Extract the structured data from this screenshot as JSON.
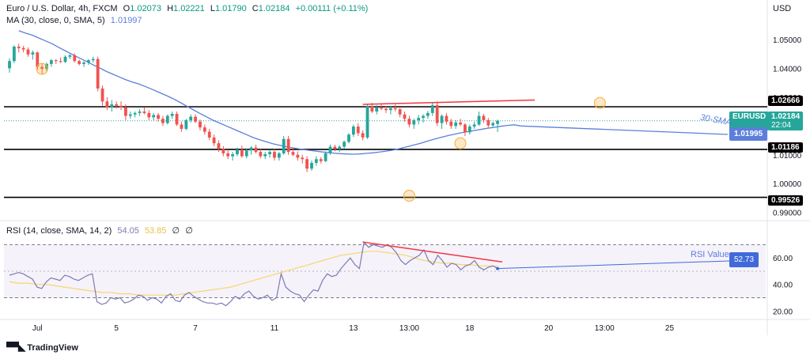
{
  "header": {
    "symbol": "Euro / U.S. Dollar, 4h, FXCM",
    "o_label": "O",
    "o_val": "1.02073",
    "h_label": "H",
    "h_val": "1.02221",
    "l_label": "L",
    "l_val": "1.01790",
    "c_label": "C",
    "c_val": "1.02184",
    "change": "+0.00111 (+0.11%)",
    "ma_label": "MA (30, close, 0, SMA, 5)",
    "ma_val": "1.01997",
    "currency": "USD"
  },
  "rsi_header": {
    "label": "RSI (14, close, SMA, 14, 2)",
    "v1": "54.05",
    "v2": "53.85",
    "v3": "∅",
    "v4": "∅"
  },
  "price_badges": {
    "symbol": "EURUSD",
    "price": "1.02184",
    "countdown": "22:04",
    "ma": "1.01995",
    "line1": "1.02666",
    "line2": "1.01186",
    "line3": "0.99526"
  },
  "annotations": {
    "sma_label": "30-SMA",
    "rsi_value_label": "RSI Value",
    "rsi_value": "52.73"
  },
  "footer": {
    "brand": "TradingView"
  },
  "colors": {
    "up": "#26a69a",
    "down": "#ef5350",
    "ma": "#5b7fdb",
    "rsi": "#7e7bb3",
    "rsi_ma": "#f5d76e",
    "trend": "#f23645",
    "hline": "#000000",
    "highlight": "#f5b041"
  },
  "chart_data": {
    "type": "candlestick",
    "price_axis": {
      "min": 0.988,
      "max": 1.056,
      "ticks": [
        1.05,
        1.04,
        1.03,
        1.02,
        1.01,
        1.0,
        0.99
      ],
      "labels": [
        "1.05000",
        "1.04000",
        "1.03000",
        "1.02000",
        "1.01000",
        "1.00000",
        "0.99000"
      ]
    },
    "x_ticks": [
      {
        "i": 6,
        "label": "Jul"
      },
      {
        "i": 23,
        "label": "5"
      },
      {
        "i": 40,
        "label": "7"
      },
      {
        "i": 57,
        "label": "11"
      },
      {
        "i": 74,
        "label": "13"
      },
      {
        "i": 86,
        "label": "13:00"
      },
      {
        "i": 99,
        "label": "18"
      },
      {
        "i": 116,
        "label": "20"
      },
      {
        "i": 128,
        "label": "13:00"
      },
      {
        "i": 142,
        "label": "25"
      }
    ],
    "candles": [
      [
        1.04,
        1.0435,
        1.0385,
        1.0425
      ],
      [
        1.0425,
        1.048,
        1.0418,
        1.0475
      ],
      [
        1.0475,
        1.0485,
        1.0455,
        1.047
      ],
      [
        1.047,
        1.0478,
        1.0455,
        1.0465
      ],
      [
        1.0465,
        1.0472,
        1.044,
        1.0448
      ],
      [
        1.0448,
        1.0462,
        1.043,
        1.0455
      ],
      [
        1.0455,
        1.0458,
        1.0395,
        1.0405
      ],
      [
        1.0405,
        1.0418,
        1.038,
        1.0398
      ],
      [
        1.0398,
        1.042,
        1.039,
        1.0415
      ],
      [
        1.0415,
        1.0432,
        1.0405,
        1.0428
      ],
      [
        1.0428,
        1.0432,
        1.0415,
        1.0425
      ],
      [
        1.0425,
        1.0438,
        1.0418,
        1.0422
      ],
      [
        1.0422,
        1.0445,
        1.0418,
        1.044
      ],
      [
        1.044,
        1.045,
        1.0432,
        1.0445
      ],
      [
        1.0445,
        1.0452,
        1.042,
        1.0425
      ],
      [
        1.0425,
        1.043,
        1.041,
        1.0415
      ],
      [
        1.0415,
        1.0425,
        1.0405,
        1.042
      ],
      [
        1.042,
        1.0432,
        1.0412,
        1.0428
      ],
      [
        1.0428,
        1.044,
        1.042,
        1.0432
      ],
      [
        1.0432,
        1.044,
        1.032,
        1.033
      ],
      [
        1.033,
        1.034,
        1.027,
        1.0285
      ],
      [
        1.0285,
        1.03,
        1.0255,
        1.0265
      ],
      [
        1.0265,
        1.029,
        1.025,
        1.0275
      ],
      [
        1.0275,
        1.0285,
        1.026,
        1.027
      ],
      [
        1.027,
        1.0285,
        1.0255,
        1.0265
      ],
      [
        1.0265,
        1.0275,
        1.022,
        1.0235
      ],
      [
        1.0235,
        1.025,
        1.0225,
        1.024
      ],
      [
        1.024,
        1.025,
        1.023,
        1.0245
      ],
      [
        1.0245,
        1.0258,
        1.0235,
        1.025
      ],
      [
        1.025,
        1.0265,
        1.024,
        1.0245
      ],
      [
        1.0245,
        1.0255,
        1.022,
        1.023
      ],
      [
        1.023,
        1.0245,
        1.022,
        1.0238
      ],
      [
        1.0238,
        1.0245,
        1.0215,
        1.0225
      ],
      [
        1.0225,
        1.0235,
        1.02,
        1.021
      ],
      [
        1.021,
        1.024,
        1.0205,
        1.0235
      ],
      [
        1.0235,
        1.025,
        1.0225,
        1.0242
      ],
      [
        1.0242,
        1.025,
        1.02,
        1.0205
      ],
      [
        1.0205,
        1.0215,
        1.018,
        1.019
      ],
      [
        1.019,
        1.0225,
        1.0185,
        1.022
      ],
      [
        1.022,
        1.024,
        1.0212,
        1.0232
      ],
      [
        1.0232,
        1.024,
        1.021,
        1.0215
      ],
      [
        1.0215,
        1.0222,
        1.0185,
        1.0195
      ],
      [
        1.0195,
        1.0205,
        1.017,
        1.018
      ],
      [
        1.018,
        1.019,
        1.015,
        1.016
      ],
      [
        1.016,
        1.017,
        1.013,
        1.014
      ],
      [
        1.014,
        1.015,
        1.011,
        1.012
      ],
      [
        1.012,
        1.013,
        1.0095,
        1.0105
      ],
      [
        1.0105,
        1.0118,
        1.0085,
        1.0095
      ],
      [
        1.0095,
        1.011,
        1.008,
        1.0102
      ],
      [
        1.0102,
        1.0125,
        1.0095,
        1.0118
      ],
      [
        1.0118,
        1.0132,
        1.009,
        1.0095
      ],
      [
        1.0095,
        1.0122,
        1.0088,
        1.0115
      ],
      [
        1.0115,
        1.013,
        1.01,
        1.0125
      ],
      [
        1.0125,
        1.0135,
        1.0105,
        1.011
      ],
      [
        1.011,
        1.012,
        1.0088,
        1.0095
      ],
      [
        1.0095,
        1.011,
        1.0085,
        1.0102
      ],
      [
        1.0102,
        1.0118,
        1.009,
        1.011
      ],
      [
        1.011,
        1.012,
        1.008,
        1.009
      ],
      [
        1.009,
        1.011,
        1.008,
        1.0105
      ],
      [
        1.0105,
        1.0165,
        1.01,
        1.0155
      ],
      [
        1.0155,
        1.0165,
        1.01,
        1.011
      ],
      [
        1.011,
        1.0125,
        1.0095,
        1.01
      ],
      [
        1.01,
        1.0112,
        1.008,
        1.009
      ],
      [
        1.009,
        1.01,
        1.007,
        1.0085
      ],
      [
        1.0085,
        1.0095,
        1.004,
        1.0052
      ],
      [
        1.0052,
        1.008,
        1.0045,
        1.0072
      ],
      [
        1.0072,
        1.0095,
        1.0062,
        1.0085
      ],
      [
        1.0085,
        1.0092,
        1.007,
        1.0078
      ],
      [
        1.0078,
        1.0112,
        1.0075,
        1.0105
      ],
      [
        1.0105,
        1.0135,
        1.01,
        1.0128
      ],
      [
        1.0128,
        1.0135,
        1.0112,
        1.012
      ],
      [
        1.012,
        1.0132,
        1.011,
        1.0128
      ],
      [
        1.0128,
        1.015,
        1.012,
        1.0145
      ],
      [
        1.0145,
        1.0175,
        1.014,
        1.017
      ],
      [
        1.017,
        1.0205,
        1.0162,
        1.0198
      ],
      [
        1.0198,
        1.021,
        1.0165,
        1.0175
      ],
      [
        1.0175,
        1.0185,
        1.015,
        1.016
      ],
      [
        1.016,
        1.0275,
        1.0155,
        1.0268
      ],
      [
        1.0268,
        1.028,
        1.0245,
        1.025
      ],
      [
        1.025,
        1.0272,
        1.024,
        1.0265
      ],
      [
        1.0265,
        1.0275,
        1.0255,
        1.026
      ],
      [
        1.026,
        1.0268,
        1.0245,
        1.0255
      ],
      [
        1.0255,
        1.027,
        1.024,
        1.0262
      ],
      [
        1.0262,
        1.0275,
        1.025,
        1.0258
      ],
      [
        1.0258,
        1.0262,
        1.023,
        1.024
      ],
      [
        1.024,
        1.025,
        1.0215,
        1.0225
      ],
      [
        1.0225,
        1.0235,
        1.0195,
        1.0205
      ],
      [
        1.0205,
        1.0225,
        1.019,
        1.022
      ],
      [
        1.022,
        1.0238,
        1.0205,
        1.0228
      ],
      [
        1.0228,
        1.024,
        1.0212,
        1.0235
      ],
      [
        1.0235,
        1.0252,
        1.0225,
        1.0245
      ],
      [
        1.0245,
        1.028,
        1.0235,
        1.0272
      ],
      [
        1.0272,
        1.0285,
        1.02,
        1.021
      ],
      [
        1.021,
        1.024,
        1.019,
        1.0235
      ],
      [
        1.0235,
        1.0245,
        1.0205,
        1.0215
      ],
      [
        1.0215,
        1.0225,
        1.019,
        1.02
      ],
      [
        1.02,
        1.022,
        1.019,
        1.0212
      ],
      [
        1.0212,
        1.0225,
        1.02,
        1.0205
      ],
      [
        1.0205,
        1.021,
        1.0165,
        1.0178
      ],
      [
        1.0178,
        1.0205,
        1.017,
        1.0198
      ],
      [
        1.0198,
        1.0215,
        1.019,
        1.0205
      ],
      [
        1.0205,
        1.025,
        1.02,
        1.0235
      ],
      [
        1.0235,
        1.0242,
        1.021,
        1.022
      ],
      [
        1.022,
        1.0228,
        1.0195,
        1.0202
      ],
      [
        1.0202,
        1.0215,
        1.0195,
        1.021
      ],
      [
        1.0207,
        1.0222,
        1.0179,
        1.0218
      ]
    ],
    "ma": [
      1.053,
      1.0522,
      1.0515,
      1.0505,
      1.0495,
      1.0485,
      1.0472,
      1.046,
      1.0448,
      1.0436,
      1.0425,
      1.0413,
      1.0402,
      1.039,
      1.038,
      1.037,
      1.036,
      1.0352,
      1.0345,
      1.0336,
      1.0326,
      1.0316,
      1.0306,
      1.0295,
      1.0283,
      1.027,
      1.0257,
      1.0244,
      1.0232,
      1.022,
      1.021,
      1.02,
      1.019,
      1.018,
      1.017,
      1.016,
      1.0152,
      1.0145,
      1.0138,
      1.0133,
      1.0128,
      1.0124,
      1.012,
      1.0117,
      1.0114,
      1.0111,
      1.0108,
      1.0106,
      1.0104,
      1.0103,
      1.0102,
      1.0103,
      1.0105,
      1.0107,
      1.011,
      1.0113,
      1.0117,
      1.0122,
      1.0128,
      1.0134,
      1.014,
      1.0147,
      1.0154,
      1.016,
      1.0166,
      1.0171,
      1.0176,
      1.018,
      1.0184,
      1.0188,
      1.0192,
      1.0195,
      1.0199,
      1.0202,
      1.0204,
      1.02
    ],
    "hlines": [
      1.02666,
      1.01186,
      0.99526
    ],
    "trend_price": {
      "from": {
        "i": 76,
        "v": 1.0275
      },
      "to": {
        "i": 113,
        "v": 1.029
      }
    },
    "highlights": [
      {
        "i": 7,
        "v": 1.0398
      },
      {
        "i": 86,
        "v": 0.9958
      },
      {
        "i": 97,
        "v": 1.014
      },
      {
        "i": 127,
        "v": 1.028
      }
    ],
    "rsi_axis": {
      "min": 16,
      "max": 78,
      "ticks": [
        20,
        40,
        60
      ],
      "labels": [
        "20.00",
        "40.00",
        "60.00"
      ],
      "band": [
        30,
        70
      ],
      "mid": 50
    },
    "rsi": [
      47,
      48,
      49,
      48,
      46,
      44,
      38,
      37,
      42,
      45,
      44,
      43,
      47,
      46,
      44,
      43,
      45,
      47,
      48,
      27,
      25,
      26,
      30,
      29,
      30,
      26,
      27,
      29,
      32,
      31,
      28,
      30,
      29,
      26,
      31,
      33,
      28,
      27,
      32,
      34,
      31,
      29,
      27,
      26,
      26,
      25,
      26,
      24,
      27,
      31,
      29,
      33,
      35,
      31,
      29,
      30,
      32,
      28,
      30,
      48,
      38,
      35,
      33,
      32,
      27,
      32,
      36,
      35,
      43,
      48,
      46,
      47,
      52,
      56,
      60,
      55,
      52,
      72,
      68,
      70,
      69,
      68,
      70,
      68,
      64,
      58,
      55,
      58,
      60,
      62,
      66,
      58,
      55,
      62,
      58,
      53,
      56,
      55,
      51,
      54,
      55,
      58,
      53,
      51,
      53,
      54,
      52
    ],
    "rsi_ma": [
      42,
      41,
      41,
      40,
      40,
      39,
      38,
      37,
      36,
      35,
      34,
      34,
      33,
      33,
      32,
      32,
      32,
      32,
      32,
      33,
      34,
      35,
      36,
      37,
      38,
      40,
      42,
      44,
      46,
      48,
      50,
      52,
      54,
      56,
      58,
      60,
      62,
      63,
      64,
      65,
      65,
      64,
      63,
      62,
      60,
      58,
      57,
      56,
      56,
      55,
      55,
      54,
      54,
      54
    ],
    "trend_rsi": {
      "from": {
        "i": 76,
        "v": 72
      },
      "to": {
        "i": 106,
        "v": 57
      }
    }
  }
}
